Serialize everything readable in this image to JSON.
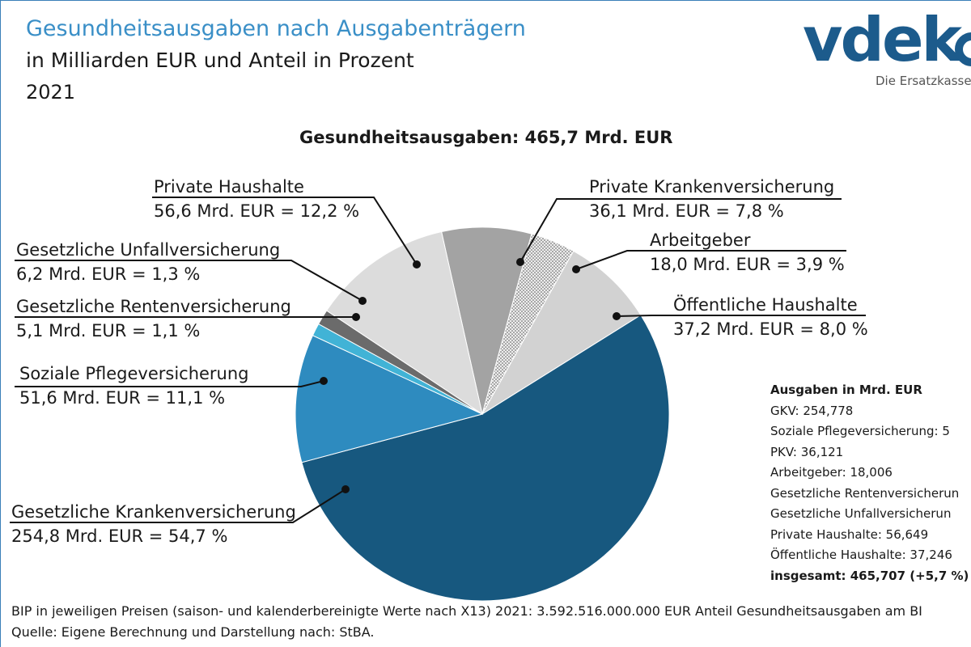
{
  "title": "Gesundheitsausgaben nach Ausgabenträgern",
  "subtitle": "in Milliarden EUR und Anteil in Prozent",
  "year": "2021",
  "logo": {
    "word": "vdek",
    "tagline": "Die Ersatzkassen"
  },
  "total_label": "Gesundheitsausgaben: 465,7 Mrd. EUR",
  "labels": {
    "ph_name": "Private Haushalte",
    "ph_value": "56,6 Mrd. EUR = 12,2 %",
    "pkv_name": "Private Krankenversicherung",
    "pkv_value": "36,1 Mrd. EUR = 7,8 %",
    "ag_name": "Arbeitgeber",
    "ag_value": "18,0 Mrd. EUR = 3,9 %",
    "oh_name": "Öffentliche Haushalte",
    "oh_value": "37,2 Mrd. EUR = 8,0 %",
    "guv_name": "Gesetzliche Unfallversicherung",
    "guv_value": "6,2 Mrd. EUR = 1,3 %",
    "grv_name": "Gesetzliche Rentenversicherung",
    "grv_value": "5,1 Mrd. EUR = 1,1 %",
    "spv_name": "Soziale Pflegeversicherung",
    "spv_value": "51,6 Mrd. EUR = 11,1 %",
    "gkv_name": "Gesetzliche Krankenversicherung",
    "gkv_value": "254,8 Mrd. EUR = 54,7 %"
  },
  "box": {
    "heading": "Ausgaben in Mrd. EUR",
    "lines": [
      "GKV: 254,778",
      "Soziale Pflegeversicherung: 5",
      "PKV: 36,121",
      "Arbeitgeber: 18,006",
      "Gesetzliche Rentenversicherun",
      "Gesetzliche Unfallversicherun",
      "Private Haushalte: 56,649",
      "Öffentliche Haushalte: 37,246"
    ],
    "total": "insgesamt: 465,707 (+5,7 %)"
  },
  "footer": {
    "line1": "BIP in jeweiligen Preisen (saison- und kalenderbereinigte Werte nach X13) 2021: 3.592.516.000.000 EUR Anteil Gesundheitsausgaben am BI",
    "line2": "Quelle: Eigene Berechnung und Darstellung nach: StBA."
  },
  "colors": {
    "gkv": "#17587f",
    "spv": "#2e8bbf",
    "grv": "#41b3d6",
    "guv": "#6b6b6b",
    "ph": "#dcdcdc",
    "pkv": "#a3a3a3",
    "ag": "#e8e8e8",
    "oh": "#d2d2d2",
    "title": "#3a8fc7",
    "logo": "#1c5b8c"
  },
  "chart_data": {
    "type": "pie",
    "title": "Gesundheitsausgaben: 465,7 Mrd. EUR",
    "unit": "Mrd. EUR",
    "slices": [
      {
        "key": "pkv",
        "label": "Private Krankenversicherung",
        "value": 36.1,
        "percent": 7.8
      },
      {
        "key": "ag",
        "label": "Arbeitgeber",
        "value": 18.0,
        "percent": 3.9
      },
      {
        "key": "oh",
        "label": "Öffentliche Haushalte",
        "value": 37.2,
        "percent": 8.0
      },
      {
        "key": "gkv",
        "label": "Gesetzliche Krankenversicherung",
        "value": 254.8,
        "percent": 54.7
      },
      {
        "key": "spv",
        "label": "Soziale Pflegeversicherung",
        "value": 51.6,
        "percent": 11.1
      },
      {
        "key": "grv",
        "label": "Gesetzliche Rentenversicherung",
        "value": 5.1,
        "percent": 1.1
      },
      {
        "key": "guv",
        "label": "Gesetzliche Unfallversicherung",
        "value": 6.2,
        "percent": 1.3
      },
      {
        "key": "ph",
        "label": "Private Haushalte",
        "value": 56.6,
        "percent": 12.2
      }
    ]
  }
}
